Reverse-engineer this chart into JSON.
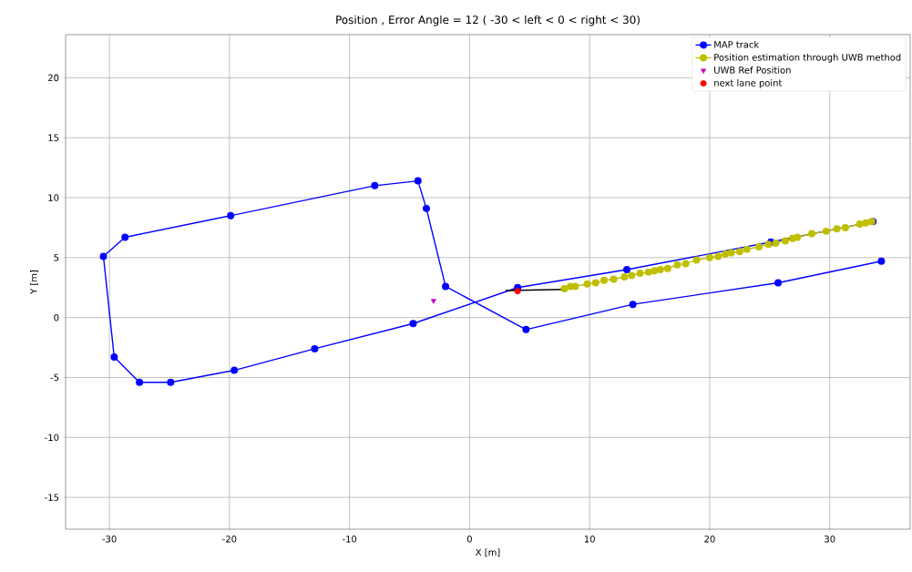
{
  "chart_data": {
    "type": "line",
    "title": "Position , Error Angle = 12 ( -30 < left < 0 < right < 30)",
    "xlabel": "X [m]",
    "ylabel": "Y [m]",
    "xlim": [
      -33.65,
      36.7
    ],
    "ylim": [
      -17.65,
      23.6
    ],
    "xticks": [
      -30,
      -20,
      -10,
      0,
      10,
      20,
      30
    ],
    "yticks": [
      -15,
      -10,
      -5,
      0,
      5,
      10,
      15,
      20
    ],
    "grid": true,
    "legend": "top right",
    "series": [
      {
        "name": "MAP track",
        "color": "#0000ff",
        "marker": "circle",
        "x": [
          33.6,
          25.1,
          13.1,
          4.0,
          -4.7,
          -12.9,
          -19.6,
          -24.9,
          -27.5,
          -29.6,
          -30.5,
          -28.7,
          -19.9,
          -7.9,
          -4.3,
          -3.6,
          -2.0,
          4.7,
          13.6,
          25.7,
          34.3
        ],
        "values": [
          8.0,
          6.3,
          4.0,
          2.5,
          -0.5,
          -2.6,
          -4.4,
          -5.4,
          -5.4,
          -3.3,
          5.1,
          6.7,
          8.5,
          11.0,
          11.4,
          9.1,
          2.6,
          -1.0,
          1.1,
          2.9,
          4.7
        ]
      },
      {
        "name": "Position estimation through UWB method",
        "color": "#bfbf00",
        "marker": "circle",
        "x": [
          7.9,
          8.4,
          8.8,
          9.8,
          10.5,
          11.2,
          12.0,
          12.9,
          13.5,
          14.2,
          14.9,
          15.4,
          15.9,
          16.5,
          17.3,
          18.0,
          18.9,
          20.0,
          20.7,
          21.3,
          21.8,
          22.5,
          23.1,
          24.1,
          24.9,
          25.5,
          26.3,
          26.9,
          27.3,
          28.5,
          29.7,
          30.6,
          31.3,
          32.5,
          33.0,
          33.5
        ],
        "values": [
          2.4,
          2.6,
          2.6,
          2.8,
          2.9,
          3.1,
          3.2,
          3.4,
          3.5,
          3.7,
          3.8,
          3.9,
          4.0,
          4.1,
          4.4,
          4.5,
          4.8,
          5.0,
          5.1,
          5.3,
          5.4,
          5.5,
          5.7,
          5.9,
          6.1,
          6.2,
          6.4,
          6.6,
          6.7,
          7.0,
          7.2,
          7.4,
          7.5,
          7.8,
          7.9,
          8.0
        ]
      },
      {
        "name": "UWB Ref Position",
        "type": "scatter",
        "color": "#bf00bf",
        "marker": "triangle",
        "x": [
          -3.0
        ],
        "values": [
          1.4
        ]
      },
      {
        "name": "next lane point",
        "type": "scatter",
        "color": "#ff0000",
        "marker": "circle",
        "x": [
          4.0
        ],
        "values": [
          2.2
        ]
      },
      {
        "color": "#000000",
        "marker": "none",
        "x": [
          7.8,
          3.0
        ],
        "values": [
          2.35,
          2.25
        ]
      }
    ]
  }
}
